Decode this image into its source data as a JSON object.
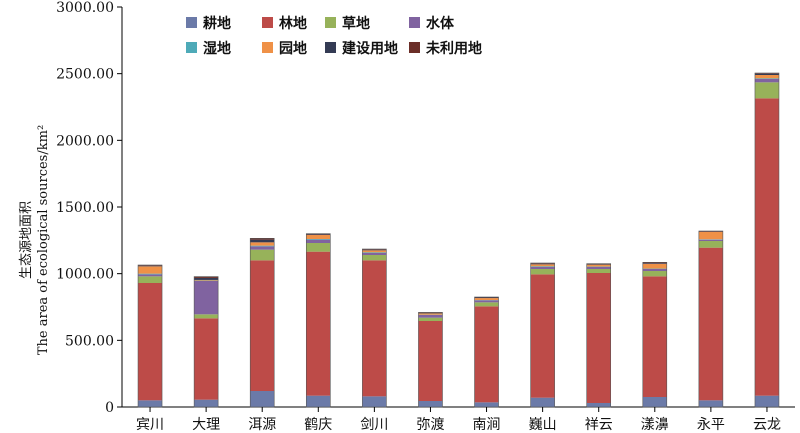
{
  "chart_data": {
    "type": "bar",
    "stacked": true,
    "ylabel_zh": "生态源地面积",
    "ylabel_en": "The area of ecological sources/km²",
    "ylim": [
      0,
      3000
    ],
    "yticks": [
      "0",
      "500.00",
      "1000.00",
      "1500.00",
      "2000.00",
      "2500.00",
      "3000.00"
    ],
    "categories": [
      "宾川",
      "大理",
      "洱源",
      "鹤庆",
      "剑川",
      "弥渡",
      "南涧",
      "巍山",
      "祥云",
      "漾濞",
      "永平",
      "云龙"
    ],
    "legend_position": "top",
    "series": [
      {
        "name": "耕地",
        "color": "#6b7aa8",
        "values": [
          50,
          55,
          120,
          85,
          80,
          45,
          35,
          70,
          30,
          75,
          50,
          85
        ]
      },
      {
        "name": "林地",
        "color": "#bd4b48",
        "values": [
          880,
          610,
          980,
          1080,
          1020,
          600,
          720,
          925,
          975,
          905,
          1145,
          2230
        ]
      },
      {
        "name": "草地",
        "color": "#97b25a",
        "values": [
          50,
          30,
          80,
          65,
          40,
          25,
          30,
          40,
          30,
          40,
          50,
          120
        ]
      },
      {
        "name": "水体",
        "color": "#8063a0",
        "values": [
          15,
          250,
          25,
          25,
          15,
          20,
          15,
          15,
          15,
          15,
          10,
          25
        ]
      },
      {
        "name": "湿地",
        "color": "#4eaab8",
        "values": [
          5,
          3,
          5,
          5,
          5,
          2,
          2,
          5,
          3,
          3,
          3,
          5
        ]
      },
      {
        "name": "园地",
        "color": "#ef9147",
        "values": [
          55,
          5,
          25,
          30,
          15,
          10,
          15,
          15,
          15,
          35,
          55,
          25
        ]
      },
      {
        "name": "建设用地",
        "color": "#343b54",
        "values": [
          5,
          15,
          20,
          5,
          5,
          5,
          5,
          5,
          5,
          5,
          2,
          10
        ]
      },
      {
        "name": "未利用地",
        "color": "#6b2e28",
        "values": [
          5,
          10,
          10,
          5,
          5,
          3,
          3,
          5,
          2,
          7,
          5,
          5
        ]
      }
    ]
  }
}
